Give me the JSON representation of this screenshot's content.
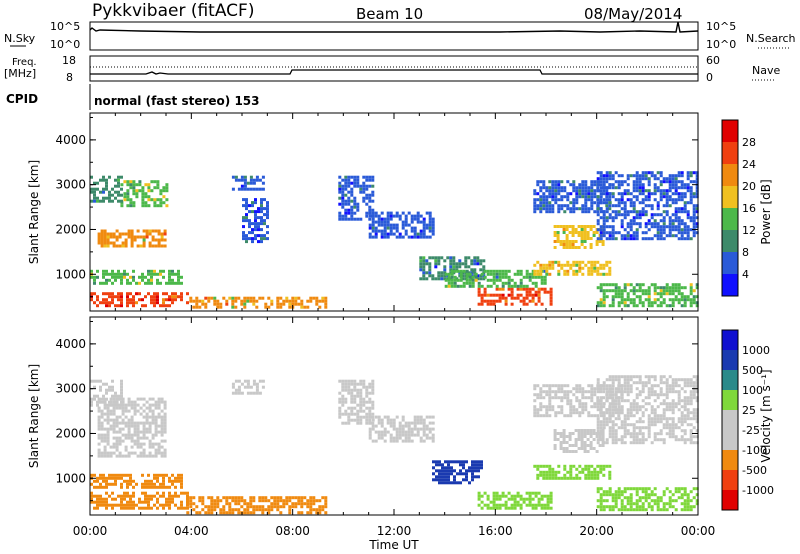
{
  "header": {
    "station": "Pykkvibaer (fitACF)",
    "beam": "Beam 10",
    "date": "08/May/2014"
  },
  "nsky_panel": {
    "left_label": "N.Sky",
    "left_ticks": [
      "10^5",
      "10^0"
    ],
    "right_label": "N.Search",
    "right_ticks": [
      "10^5",
      "10^0"
    ]
  },
  "freq_panel": {
    "left_label_line1": "Freq.",
    "left_label_line2": "[MHz]",
    "left_ticks": [
      "18",
      "8"
    ],
    "right_label": "Nave",
    "right_ticks": [
      "60",
      "0"
    ]
  },
  "cpid": {
    "label": "CPID",
    "mode_text": "normal (fast stereo) 153"
  },
  "colors": {
    "power_scale": [
      "#1010ff",
      "#2a5ad8",
      "#3d8a6a",
      "#4cb84a",
      "#f0c020",
      "#f08a10",
      "#f04010",
      "#e00000"
    ],
    "velocity_scale": [
      "#e00000",
      "#f04010",
      "#f08a10",
      "#c8c8c8",
      "#c8c8c8",
      "#7fd83a",
      "#2a8a8a",
      "#1a3ab0",
      "#1010d0"
    ]
  },
  "chart_data": [
    {
      "type": "heatmap",
      "panel": "power",
      "xlabel": "",
      "ylabel": "Slant Range [km]",
      "xlim": [
        0,
        24
      ],
      "ylim": [
        180,
        4600
      ],
      "yticks": [
        "1000",
        "2000",
        "3000",
        "4000"
      ],
      "colorbar_label": "Power [dB]",
      "colorbar_ticks": [
        "4",
        "8",
        "12",
        "16",
        "20",
        "24",
        "28"
      ],
      "colorbar_range": [
        0,
        32
      ],
      "regions": [
        {
          "x": [
            0.0,
            3.8
          ],
          "y": [
            300,
            600
          ],
          "value": 27
        },
        {
          "x": [
            3.8,
            9.3
          ],
          "y": [
            250,
            500
          ],
          "value": 20
        },
        {
          "x": [
            15.3,
            18.2
          ],
          "y": [
            300,
            700
          ],
          "value": 26
        },
        {
          "x": [
            0.0,
            3.6
          ],
          "y": [
            800,
            1100
          ],
          "value": 14
        },
        {
          "x": [
            0.3,
            3.0
          ],
          "y": [
            1600,
            2000
          ],
          "value": 20
        },
        {
          "x": [
            1.2,
            3.0
          ],
          "y": [
            2500,
            3100
          ],
          "value": 15
        },
        {
          "x": [
            0.0,
            1.2
          ],
          "y": [
            2600,
            3200
          ],
          "value": 8
        },
        {
          "x": [
            5.6,
            6.8
          ],
          "y": [
            2900,
            3200
          ],
          "value": 6
        },
        {
          "x": [
            6.0,
            7.0
          ],
          "y": [
            1700,
            2700
          ],
          "value": 5
        },
        {
          "x": [
            9.8,
            11.2
          ],
          "y": [
            2200,
            3200
          ],
          "value": 5
        },
        {
          "x": [
            11.0,
            13.5
          ],
          "y": [
            1800,
            2400
          ],
          "value": 5
        },
        {
          "x": [
            13.0,
            15.5
          ],
          "y": [
            900,
            1400
          ],
          "value": 8
        },
        {
          "x": [
            14.0,
            18.0
          ],
          "y": [
            700,
            1100
          ],
          "value": 12
        },
        {
          "x": [
            17.5,
            20.5
          ],
          "y": [
            1000,
            1300
          ],
          "value": 18
        },
        {
          "x": [
            18.3,
            20.3
          ],
          "y": [
            1600,
            2100
          ],
          "value": 18
        },
        {
          "x": [
            17.5,
            20.5
          ],
          "y": [
            2400,
            3100
          ],
          "value": 7
        },
        {
          "x": [
            20.0,
            24.0
          ],
          "y": [
            300,
            800
          ],
          "value": 14
        },
        {
          "x": [
            20.0,
            24.0
          ],
          "y": [
            1800,
            3300
          ],
          "value": 6
        }
      ]
    },
    {
      "type": "heatmap",
      "panel": "velocity",
      "xlabel": "Time UT",
      "ylabel": "Slant Range [km]",
      "xlim": [
        0,
        24
      ],
      "ylim": [
        180,
        4600
      ],
      "xticks": [
        "00:00",
        "04:00",
        "08:00",
        "12:00",
        "16:00",
        "20:00",
        "00:00"
      ],
      "yticks": [
        "1000",
        "2000",
        "3000",
        "4000"
      ],
      "colorbar_label": "Velocity [m s⁻¹]",
      "colorbar_ticks": [
        "-1000",
        "-500",
        "-100",
        "-25",
        "25",
        "100",
        "500",
        "1000"
      ],
      "regions": [
        {
          "x": [
            0.0,
            3.8
          ],
          "y": [
            300,
            700
          ],
          "value": "-100"
        },
        {
          "x": [
            3.8,
            9.3
          ],
          "y": [
            250,
            600
          ],
          "value": "-100"
        },
        {
          "x": [
            0.0,
            3.6
          ],
          "y": [
            800,
            1100
          ],
          "value": "-100"
        },
        {
          "x": [
            0.3,
            3.0
          ],
          "y": [
            1500,
            2800
          ],
          "value": "0"
        },
        {
          "x": [
            0.0,
            1.2
          ],
          "y": [
            2600,
            3200
          ],
          "value": "0"
        },
        {
          "x": [
            5.6,
            6.8
          ],
          "y": [
            2900,
            3200
          ],
          "value": "0"
        },
        {
          "x": [
            9.8,
            11.2
          ],
          "y": [
            2200,
            3200
          ],
          "value": "0"
        },
        {
          "x": [
            11.0,
            13.5
          ],
          "y": [
            1800,
            2400
          ],
          "value": "0"
        },
        {
          "x": [
            13.5,
            15.5
          ],
          "y": [
            900,
            1400
          ],
          "value": "500"
        },
        {
          "x": [
            15.3,
            18.2
          ],
          "y": [
            300,
            700
          ],
          "value": "100"
        },
        {
          "x": [
            17.5,
            20.5
          ],
          "y": [
            1000,
            1300
          ],
          "value": "100"
        },
        {
          "x": [
            18.3,
            20.3
          ],
          "y": [
            1600,
            2100
          ],
          "value": "0"
        },
        {
          "x": [
            17.5,
            21.0
          ],
          "y": [
            2400,
            3100
          ],
          "value": "0"
        },
        {
          "x": [
            20.0,
            24.0
          ],
          "y": [
            300,
            800
          ],
          "value": "100"
        },
        {
          "x": [
            20.0,
            24.0
          ],
          "y": [
            1800,
            3300
          ],
          "value": "0"
        }
      ]
    }
  ]
}
